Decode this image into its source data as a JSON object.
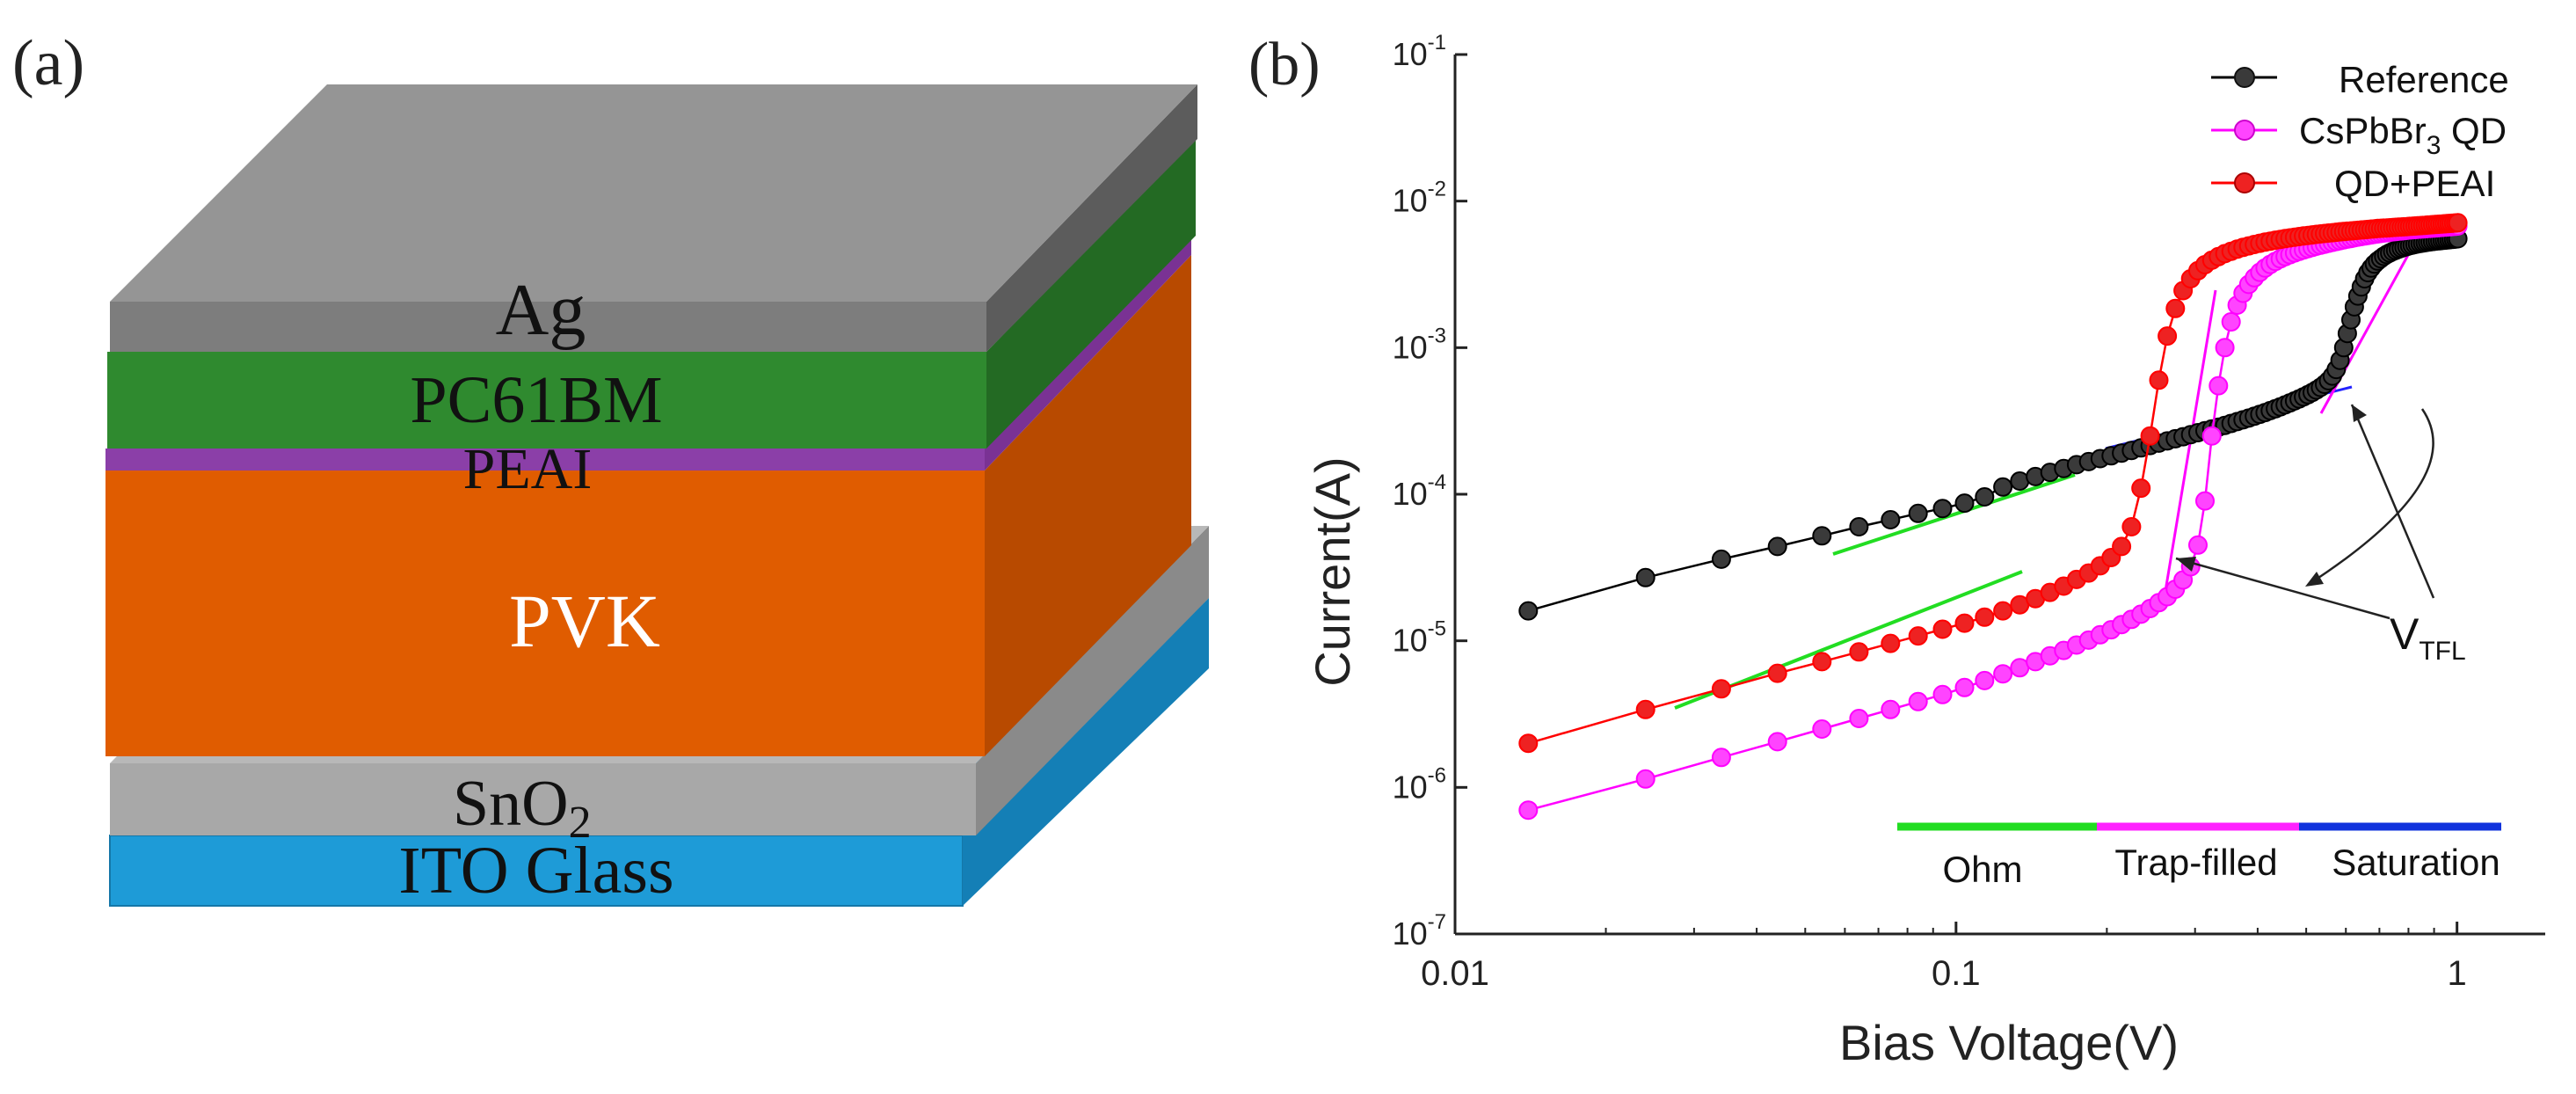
{
  "panel_a": {
    "label": "(a)",
    "layers": {
      "ag": {
        "label": "Ag",
        "color": "#8c8c8c"
      },
      "pcbm": {
        "label": "PC61BM",
        "color": "#2f8a2f"
      },
      "peai": {
        "label": "PEAI",
        "color": "#8b3fa8"
      },
      "pvk": {
        "label": "PVK",
        "color": "#e05c00"
      },
      "sno2": {
        "label": "SnO",
        "sub": "2",
        "color": "#a6a6a6"
      },
      "ito": {
        "label": "ITO Glass",
        "color": "#1e9bd7"
      }
    }
  },
  "panel_b": {
    "label": "(b)",
    "regions": [
      {
        "label": "Ohm",
        "color": "#22dd22"
      },
      {
        "label": "Trap-filled",
        "color": "#ff22ff"
      },
      {
        "label": "Saturation",
        "color": "#1133dd"
      }
    ],
    "vtfl": {
      "main": "V",
      "sub": "TFL"
    }
  },
  "chart_data": {
    "type": "scatter",
    "xlabel": "Bias Voltage(V)",
    "ylabel": "Current(A)",
    "xscale": "log",
    "yscale": "log",
    "xlim": [
      0.01,
      1.5
    ],
    "ylim": [
      1e-07,
      0.1
    ],
    "xticks": [
      {
        "value": 0.01,
        "label": "0.01"
      },
      {
        "value": 0.1,
        "label": "0.1"
      },
      {
        "value": 1,
        "label": "1"
      }
    ],
    "yticks": [
      {
        "value": 1e-07,
        "base": "10",
        "exp": "-7"
      },
      {
        "value": 1e-06,
        "base": "10",
        "exp": "-6"
      },
      {
        "value": 1e-05,
        "base": "10",
        "exp": "-5"
      },
      {
        "value": 0.0001,
        "base": "10",
        "exp": "-4"
      },
      {
        "value": 0.001,
        "base": "10",
        "exp": "-3"
      },
      {
        "value": 0.01,
        "base": "10",
        "exp": "-2"
      },
      {
        "value": 0.1,
        "base": "10",
        "exp": "-1"
      }
    ],
    "legend_position": "top-right",
    "series": [
      {
        "name": "Reference",
        "color": "#000000",
        "marker": "#3a3a3a",
        "x": [
          0.014,
          0.024,
          0.034,
          0.044,
          0.054,
          0.064,
          0.074,
          0.084,
          0.094,
          0.104,
          0.114,
          0.124,
          0.134,
          0.144,
          0.154,
          0.164,
          0.174,
          0.184,
          0.194,
          0.204,
          0.214,
          0.224,
          0.234,
          0.244,
          0.254,
          0.264,
          0.274,
          0.284,
          0.294,
          0.304,
          0.314,
          0.324,
          0.334,
          0.344,
          0.354,
          0.364,
          0.374,
          0.384,
          0.394,
          0.404,
          0.414,
          0.424,
          0.434,
          0.444,
          0.454,
          0.464,
          0.474,
          0.484,
          0.494,
          0.504,
          0.514,
          0.524,
          0.534,
          0.544,
          0.554,
          0.564,
          0.574,
          0.584,
          0.594,
          0.604,
          0.614,
          0.624,
          0.634,
          0.644,
          0.654,
          0.664,
          0.674,
          0.684,
          0.694,
          0.704,
          0.714,
          0.724,
          0.734,
          0.744,
          0.754,
          0.764,
          0.774,
          0.784,
          0.794,
          0.804,
          0.814,
          0.824,
          0.834,
          0.844,
          0.854,
          0.864,
          0.874,
          0.884,
          0.894,
          0.904,
          0.914,
          0.924,
          0.934,
          0.944,
          0.954,
          0.964,
          0.974,
          0.984,
          0.994,
          1.004
        ],
        "y": [
          1.6e-05,
          2.7e-05,
          3.6e-05,
          4.4e-05,
          5.2e-05,
          6e-05,
          6.7e-05,
          7.4e-05,
          8e-05,
          8.7e-05,
          9.6e-05,
          0.000112,
          0.000123,
          0.000132,
          0.000141,
          0.00015,
          0.000159,
          0.000167,
          0.000175,
          0.000183,
          0.000191,
          0.000199,
          0.000207,
          0.000215,
          0.000223,
          0.000231,
          0.000239,
          0.000247,
          0.000255,
          0.000263,
          0.000271,
          0.000279,
          0.000287,
          0.000295,
          0.000304,
          0.000313,
          0.000322,
          0.000331,
          0.000341,
          0.000351,
          0.000361,
          0.000372,
          0.000383,
          0.000395,
          0.000407,
          0.00042,
          0.000433,
          0.000447,
          0.000462,
          0.000478,
          0.000495,
          0.000514,
          0.000536,
          0.000562,
          0.000595,
          0.00064,
          0.00071,
          0.00082,
          0.001,
          0.00125,
          0.00155,
          0.0019,
          0.00225,
          0.0026,
          0.00295,
          0.00325,
          0.0035,
          0.00372,
          0.0039,
          0.00405,
          0.0042,
          0.00432,
          0.00443,
          0.00453,
          0.00462,
          0.0047,
          0.00477,
          0.00484,
          0.0049,
          0.00496,
          0.00501,
          0.00506,
          0.0051,
          0.00514,
          0.00518,
          0.00521,
          0.00524,
          0.00527,
          0.0053,
          0.00533,
          0.00535,
          0.00537,
          0.00539,
          0.00541,
          0.00543,
          0.00545,
          0.00547,
          0.00549,
          0.00551,
          0.00553
        ]
      },
      {
        "name": "CsPbBr3 QD",
        "legend_main": "CsPbBr",
        "legend_sub": "3",
        "legend_tail": " QD",
        "color": "#ff00ff",
        "marker": "#ff44ff",
        "x": [
          0.014,
          0.024,
          0.034,
          0.044,
          0.054,
          0.064,
          0.074,
          0.084,
          0.094,
          0.104,
          0.114,
          0.124,
          0.134,
          0.144,
          0.154,
          0.164,
          0.174,
          0.184,
          0.194,
          0.204,
          0.214,
          0.224,
          0.234,
          0.244,
          0.254,
          0.264,
          0.274,
          0.284,
          0.294,
          0.304,
          0.314,
          0.324,
          0.334,
          0.344,
          0.354,
          0.364,
          0.374,
          0.384,
          0.394,
          0.404,
          0.414,
          0.424,
          0.434,
          0.444,
          0.454,
          0.464,
          0.474,
          0.484,
          0.494,
          0.504,
          0.514,
          0.524,
          0.534,
          0.544,
          0.554,
          0.564,
          0.574,
          0.584,
          0.594,
          0.604,
          0.614,
          0.624,
          0.634,
          0.644,
          0.654,
          0.664,
          0.674,
          0.684,
          0.694,
          0.704,
          0.714,
          0.724,
          0.734,
          0.744,
          0.754,
          0.764,
          0.774,
          0.784,
          0.794,
          0.804,
          0.814,
          0.824,
          0.834,
          0.844,
          0.854,
          0.864,
          0.874,
          0.884,
          0.894,
          0.904,
          0.914,
          0.924,
          0.934,
          0.944,
          0.954,
          0.964,
          0.974,
          0.984,
          0.994,
          1.004
        ],
        "y": [
          7e-07,
          1.14e-06,
          1.6e-06,
          2.05e-06,
          2.5e-06,
          2.95e-06,
          3.4e-06,
          3.85e-06,
          4.3e-06,
          4.8e-06,
          5.35e-06,
          5.95e-06,
          6.55e-06,
          7.2e-06,
          7.9e-06,
          8.6e-06,
          9.35e-06,
          1.01e-05,
          1.1e-05,
          1.19e-05,
          1.29e-05,
          1.4e-05,
          1.52e-05,
          1.66e-05,
          1.82e-05,
          2e-05,
          2.25e-05,
          2.6e-05,
          3.2e-05,
          4.5e-05,
          9e-05,
          0.00025,
          0.00055,
          0.001,
          0.0015,
          0.00195,
          0.00235,
          0.0027,
          0.003,
          0.00327,
          0.0035,
          0.0037,
          0.00388,
          0.00404,
          0.00418,
          0.00431,
          0.00443,
          0.00454,
          0.00464,
          0.00474,
          0.00483,
          0.00492,
          0.005,
          0.00508,
          0.00516,
          0.00523,
          0.0053,
          0.00537,
          0.00544,
          0.0055,
          0.00556,
          0.00562,
          0.00568,
          0.00573,
          0.00578,
          0.00583,
          0.00588,
          0.00593,
          0.00597,
          0.00601,
          0.00605,
          0.00609,
          0.00613,
          0.00617,
          0.0062,
          0.00623,
          0.00626,
          0.00629,
          0.00632,
          0.00635,
          0.00638,
          0.0064,
          0.00642,
          0.00644,
          0.00646,
          0.00648,
          0.0065,
          0.00652,
          0.00654,
          0.00656,
          0.00658,
          0.0066,
          0.00662,
          0.00664,
          0.00666,
          0.00668,
          0.0067,
          0.00672,
          0.00674,
          0.00676
        ]
      },
      {
        "name": "QD+PEAI",
        "color": "#ff0000",
        "marker": "#ee2222",
        "x": [
          0.014,
          0.024,
          0.034,
          0.044,
          0.054,
          0.064,
          0.074,
          0.084,
          0.094,
          0.104,
          0.114,
          0.124,
          0.134,
          0.144,
          0.154,
          0.164,
          0.174,
          0.184,
          0.194,
          0.204,
          0.214,
          0.224,
          0.234,
          0.244,
          0.254,
          0.264,
          0.274,
          0.284,
          0.294,
          0.304,
          0.314,
          0.324,
          0.334,
          0.344,
          0.354,
          0.364,
          0.374,
          0.384,
          0.394,
          0.404,
          0.414,
          0.424,
          0.434,
          0.444,
          0.454,
          0.464,
          0.474,
          0.484,
          0.494,
          0.504,
          0.514,
          0.524,
          0.534,
          0.544,
          0.554,
          0.564,
          0.574,
          0.584,
          0.594,
          0.604,
          0.614,
          0.624,
          0.634,
          0.644,
          0.654,
          0.664,
          0.674,
          0.684,
          0.694,
          0.704,
          0.714,
          0.724,
          0.734,
          0.744,
          0.754,
          0.764,
          0.774,
          0.784,
          0.794,
          0.804,
          0.814,
          0.824,
          0.834,
          0.844,
          0.854,
          0.864,
          0.874,
          0.884,
          0.894,
          0.904,
          0.914,
          0.924,
          0.934,
          0.944,
          0.954,
          0.964,
          0.974,
          0.984,
          0.994,
          1.004
        ],
        "y": [
          2e-06,
          3.4e-06,
          4.7e-06,
          6e-06,
          7.2e-06,
          8.4e-06,
          9.6e-06,
          1.08e-05,
          1.2e-05,
          1.32e-05,
          1.45e-05,
          1.6e-05,
          1.76e-05,
          1.94e-05,
          2.14e-05,
          2.36e-05,
          2.62e-05,
          2.9e-05,
          3.25e-05,
          3.7e-05,
          4.4e-05,
          6e-05,
          0.00011,
          0.00025,
          0.0006,
          0.0012,
          0.00185,
          0.00245,
          0.00295,
          0.00335,
          0.00368,
          0.00395,
          0.00418,
          0.00438,
          0.00455,
          0.0047,
          0.00483,
          0.00495,
          0.00506,
          0.00516,
          0.00525,
          0.00533,
          0.00541,
          0.00548,
          0.00555,
          0.00561,
          0.00567,
          0.00573,
          0.00578,
          0.00583,
          0.00588,
          0.00593,
          0.00597,
          0.00601,
          0.00605,
          0.00609,
          0.00613,
          0.00617,
          0.0062,
          0.00623,
          0.00626,
          0.00629,
          0.00632,
          0.00635,
          0.00638,
          0.00641,
          0.00644,
          0.00647,
          0.0065,
          0.00652,
          0.00654,
          0.00656,
          0.00658,
          0.0066,
          0.00662,
          0.00664,
          0.00666,
          0.00668,
          0.0067,
          0.00672,
          0.00674,
          0.00676,
          0.00678,
          0.0068,
          0.00682,
          0.00684,
          0.00686,
          0.00688,
          0.0069,
          0.00692,
          0.00694,
          0.00696,
          0.00698,
          0.007,
          0.00702,
          0.00704,
          0.00706,
          0.00708,
          0.0071,
          0.00712
        ]
      }
    ]
  }
}
